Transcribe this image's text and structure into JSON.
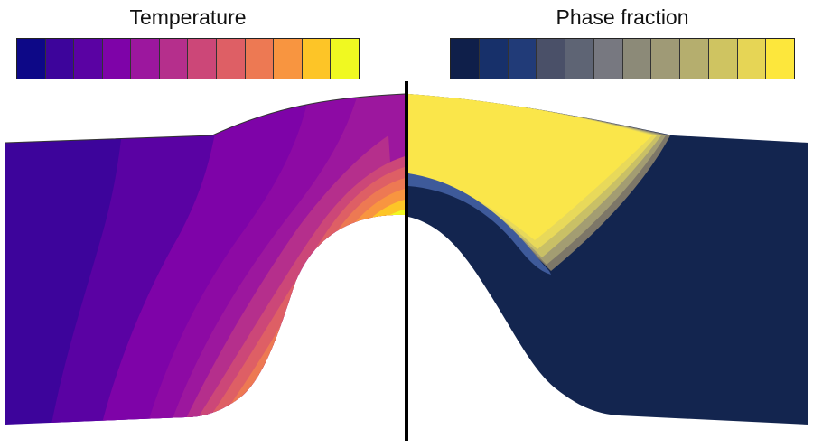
{
  "legends": {
    "temperature": {
      "title": "Temperature",
      "colors": [
        "#0d0887",
        "#3d049b",
        "#5a02a3",
        "#7e03a8",
        "#9c179e",
        "#b52f8c",
        "#cc4778",
        "#de5f65",
        "#ed7953",
        "#f89540",
        "#fdc527",
        "#f0f921"
      ]
    },
    "phase_fraction": {
      "title": "Phase fraction",
      "colors": [
        "#0f1f4a",
        "#17306a",
        "#213b78",
        "#4a5068",
        "#5e6474",
        "#777880",
        "#8c8a78",
        "#9f9a76",
        "#b5ae6e",
        "#cfc461",
        "#e6d555",
        "#fde73c"
      ]
    }
  },
  "temperature_band_colors": [
    "#3d049b",
    "#5a02a3",
    "#7e03a8",
    "#8d0aa4",
    "#9c179e",
    "#b52f8c",
    "#cc4778",
    "#de5f65",
    "#ed7953",
    "#f89540",
    "#fdc527",
    "#f0f921"
  ],
  "phase_colors": {
    "background": "#13254f",
    "transformed": "#fae64a",
    "gradient_band": [
      "#7d7768",
      "#a39d72",
      "#c9c066",
      "#e8d95a"
    ]
  },
  "divider_color": "#000000"
}
